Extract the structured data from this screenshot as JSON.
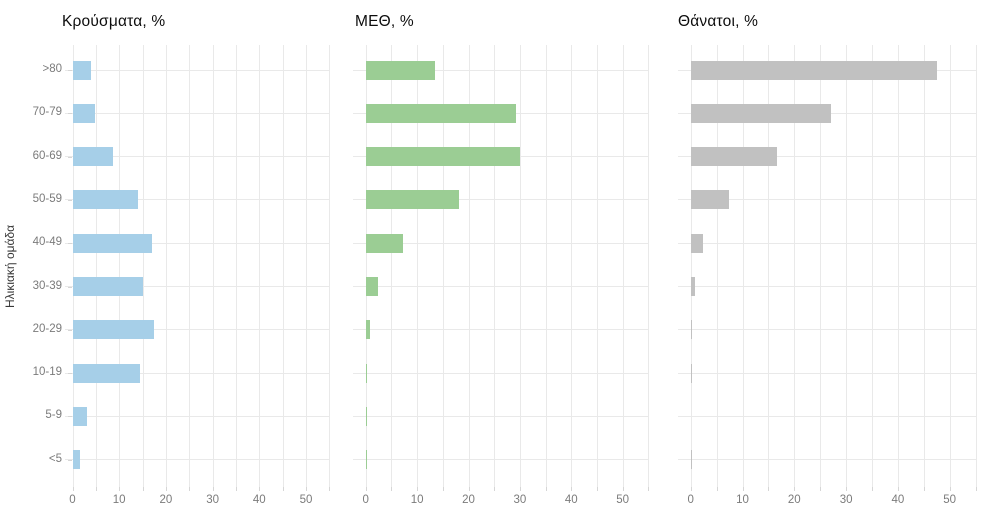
{
  "figure": {
    "background": "#ffffff",
    "y_axis_title": "Ηλικιακή ομάδα"
  },
  "chart_data": [
    {
      "type": "bar",
      "orientation": "horizontal",
      "title": "Κρούσματα, %",
      "bar_color": "#a6cfe8",
      "categories": [
        ">80",
        "70-79",
        "60-69",
        "50-59",
        "40-49",
        "30-39",
        "20-29",
        "10-19",
        "5-9",
        "<5"
      ],
      "values": [
        3.9,
        4.9,
        8.6,
        14.0,
        17.0,
        15.1,
        17.4,
        14.4,
        3.2,
        1.7
      ],
      "xlabel": "",
      "ylabel": "Ηλικιακή ομάδα",
      "xlim": [
        0,
        55
      ],
      "x_ticks": [
        0,
        10,
        20,
        30,
        40,
        50
      ],
      "grid_step": 5,
      "grid": "on",
      "legend": "none"
    },
    {
      "type": "bar",
      "orientation": "horizontal",
      "title": "ΜΕΘ, %",
      "bar_color": "#9bcd94",
      "categories": [
        ">80",
        "70-79",
        "60-69",
        "50-59",
        "40-49",
        "30-39",
        "20-29",
        "10-19",
        "5-9",
        "<5"
      ],
      "values": [
        13.4,
        29.3,
        30.0,
        18.1,
        7.3,
        2.3,
        0.9,
        0.3,
        0.2,
        0.3
      ],
      "xlabel": "",
      "ylabel": "",
      "xlim": [
        0,
        55
      ],
      "x_ticks": [
        0,
        10,
        20,
        30,
        40,
        50
      ],
      "grid_step": 5,
      "grid": "on",
      "legend": "none"
    },
    {
      "type": "bar",
      "orientation": "horizontal",
      "title": "Θάνατοι, %",
      "bar_color": "#c1c1c1",
      "categories": [
        ">80",
        "70-79",
        "60-69",
        "50-59",
        "40-49",
        "30-39",
        "20-29",
        "10-19",
        "5-9",
        "<5"
      ],
      "values": [
        47.5,
        27.0,
        16.6,
        7.3,
        2.3,
        0.8,
        0.1,
        0.1,
        0.0,
        0.1
      ],
      "xlabel": "",
      "ylabel": "",
      "xlim": [
        0,
        55
      ],
      "x_ticks": [
        0,
        10,
        20,
        30,
        40,
        50
      ],
      "grid_step": 5,
      "grid": "on",
      "legend": "none"
    }
  ],
  "colors": {
    "grid": "#e9e9e9",
    "tick": "#d6d6d6",
    "axis_text": "#7b7b7b",
    "title_text": "#0d0d0d"
  }
}
